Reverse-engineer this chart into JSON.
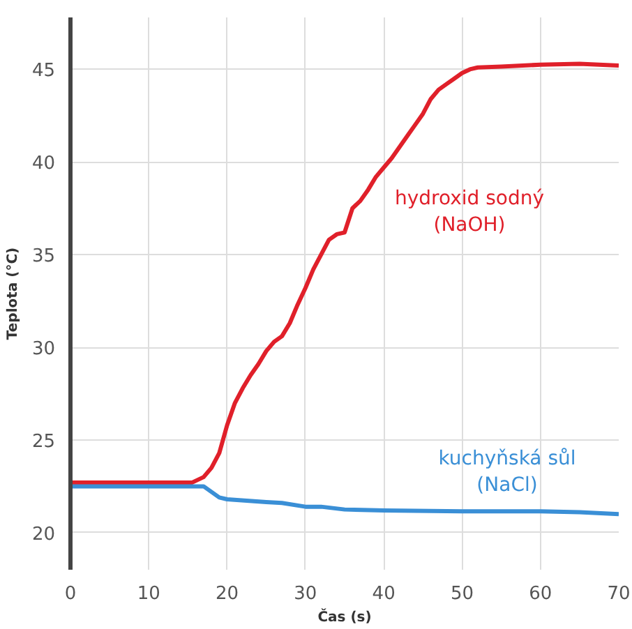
{
  "chart_data": {
    "type": "line",
    "xlabel": "Čas (s)",
    "ylabel": "Teplota (°C)",
    "xlim": [
      0,
      70
    ],
    "ylim": [
      18,
      47.8
    ],
    "xticks": [
      0,
      10,
      20,
      30,
      40,
      50,
      60,
      70
    ],
    "yticks": [
      20,
      25,
      30,
      35,
      40,
      45
    ],
    "grid": true,
    "marker": "none",
    "line_style": "solid",
    "series": [
      {
        "name": "hydroxid sodný\n(NaOH)",
        "color": "#e0202a",
        "x": [
          0,
          15.5,
          17,
          18,
          19,
          20,
          21,
          22,
          23,
          24,
          25,
          26,
          27,
          28,
          29,
          30,
          31,
          32,
          33,
          34,
          35,
          36,
          37,
          38,
          39,
          40,
          41,
          42,
          43,
          44,
          45,
          46,
          47,
          48,
          49,
          50,
          51,
          52,
          55,
          60,
          65,
          70
        ],
        "values": [
          22.7,
          22.7,
          23.0,
          23.5,
          24.3,
          25.8,
          27.0,
          27.8,
          28.5,
          29.1,
          29.8,
          30.3,
          30.6,
          31.3,
          32.3,
          33.2,
          34.2,
          35.0,
          35.8,
          36.1,
          36.2,
          37.5,
          37.9,
          38.5,
          39.2,
          39.7,
          40.2,
          40.8,
          41.4,
          42.0,
          42.6,
          43.4,
          43.9,
          44.2,
          44.5,
          44.8,
          45.0,
          45.1,
          45.15,
          45.25,
          45.3,
          45.2
        ]
      },
      {
        "name": "kuchyňská sůl\n(NaCl)",
        "color": "#3a8fd6",
        "x": [
          0,
          17,
          18,
          19,
          20,
          25,
          27,
          30,
          32,
          35,
          40,
          50,
          60,
          65,
          70
        ],
        "values": [
          22.5,
          22.5,
          22.2,
          21.9,
          21.8,
          21.65,
          21.6,
          21.4,
          21.4,
          21.25,
          21.2,
          21.15,
          21.15,
          21.1,
          21.0
        ]
      }
    ]
  }
}
